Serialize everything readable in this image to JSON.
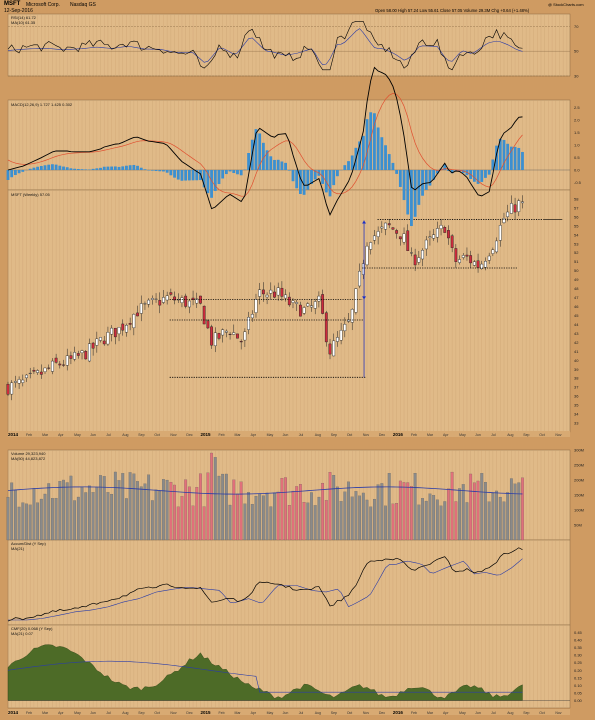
{
  "header": {
    "symbol": "MSFT",
    "company": "Microsoft Corp.",
    "exchange": "Nasdaq GS",
    "date": "12-Sep-2016",
    "quote": "Open 58.00   High 57.24   Low 55.61   Close 57.05   Volume 29.3M   Chg +0.64 (+1.48%)",
    "watermark": "@ StockCharts.com"
  },
  "panels": {
    "rsi_title": "RSI(14) 61.72",
    "rsi_ma": "MA(10) 61.35",
    "macd_title": "MACD(12,26,9) 1.727  1.425  0.302",
    "price_title": "MSFT (Weekly) 57.05",
    "volume_title": "Volume 29,323,940",
    "volume_ma": "MA(50) 44,823,872",
    "accdist_title": "Accum/Dist (Y Sep)",
    "accdist_ma": "MA(21)",
    "cmf_title": "CMF(20) 0.068 (Y Sep)",
    "cmf_ma": "MA(21) 0.07"
  },
  "colors": {
    "background": "#cf9b62",
    "plot_area": "#e0ba88",
    "up_candle": "#ffffff",
    "down_candle": "#cc2b3c",
    "volume_up": "#8a8a8a",
    "volume_down": "#e0707a",
    "macd_line": "#000000",
    "signal_line": "#e05030",
    "histogram": "#3b8fd0",
    "ma_line": "#2a3ca8",
    "cmf_fill": "#4d6b27",
    "annotation_blue": "#1a2fc8"
  },
  "chart_data": {
    "type": "candlestick",
    "interval": "weekly",
    "x_axis": {
      "range": [
        "2014-01",
        "2016-11"
      ],
      "year_labels": [
        "2014",
        "2015",
        "2016"
      ],
      "month_labels": [
        "Feb",
        "Mar",
        "Apr",
        "May",
        "Jun",
        "Jul",
        "Aug",
        "Sep",
        "Oct",
        "Nov",
        "Dec",
        "Feb",
        "Mar",
        "Apr",
        "May",
        "Jun",
        "Jul",
        "Aug",
        "Sep",
        "Oct",
        "Nov",
        "Dec",
        "Feb",
        "Mar",
        "Apr",
        "May",
        "Jun",
        "Jul",
        "Aug",
        "Sep",
        "Oct",
        "Nov"
      ]
    },
    "price": {
      "ylim": [
        32,
        59
      ],
      "ticks": [
        33,
        34,
        35,
        36,
        37,
        38,
        39,
        40,
        41,
        42,
        43,
        44,
        45,
        46,
        47,
        48,
        49,
        50,
        51,
        52,
        53,
        54,
        55,
        56,
        57,
        58
      ],
      "close_path": [
        [
          2014.0,
          37.0
        ],
        [
          2014.08,
          37.5
        ],
        [
          2014.17,
          38.5
        ],
        [
          2014.25,
          39.5
        ],
        [
          2014.33,
          40.0
        ],
        [
          2014.42,
          41.0
        ],
        [
          2014.5,
          42.5
        ],
        [
          2014.58,
          43.5
        ],
        [
          2014.67,
          45.5
        ],
        [
          2014.75,
          46.3
        ],
        [
          2014.83,
          47.0
        ],
        [
          2014.92,
          46.5
        ],
        [
          2015.0,
          46.0
        ],
        [
          2015.06,
          42.0
        ],
        [
          2015.15,
          43.5
        ],
        [
          2015.22,
          42.0
        ],
        [
          2015.3,
          47.5
        ],
        [
          2015.4,
          47.5
        ],
        [
          2015.48,
          46.0
        ],
        [
          2015.55,
          45.5
        ],
        [
          2015.62,
          46.5
        ],
        [
          2015.67,
          41.0
        ],
        [
          2015.72,
          42.5
        ],
        [
          2015.78,
          44.5
        ],
        [
          2015.82,
          48.5
        ],
        [
          2015.87,
          53.8
        ],
        [
          2015.92,
          54.0
        ],
        [
          2015.97,
          55.0
        ],
        [
          2016.05,
          54.0
        ],
        [
          2016.1,
          51.0
        ],
        [
          2016.18,
          53.0
        ],
        [
          2016.27,
          55.0
        ],
        [
          2016.32,
          51.0
        ],
        [
          2016.38,
          51.5
        ],
        [
          2016.45,
          50.5
        ],
        [
          2016.52,
          53.0
        ],
        [
          2016.58,
          56.0
        ],
        [
          2016.65,
          57.5
        ],
        [
          2016.69,
          57.05
        ]
      ],
      "resistance_levels": [
        {
          "value": 46.8,
          "from": 2014.84,
          "to": 2015.84
        },
        {
          "value": 44.5,
          "from": 2014.84,
          "to": 2015.85
        },
        {
          "value": 55.7,
          "from": 2015.92,
          "to": 2016.78
        },
        {
          "value": 50.3,
          "from": 2015.84,
          "to": 2016.65
        }
      ],
      "measured_move": {
        "x": 2015.85,
        "from": 44.5,
        "to": 55.6
      }
    },
    "rsi": {
      "ylim": [
        30,
        80
      ],
      "ticks": [
        30,
        50,
        70
      ],
      "last": 61.72
    },
    "macd": {
      "ylim": [
        -0.8,
        2.8
      ],
      "ticks": [
        -0.5,
        0.0,
        0.5,
        1.0,
        1.5,
        2.0,
        2.5
      ],
      "macd": 1.727,
      "signal": 1.425,
      "histogram": 0.302
    },
    "volume": {
      "ylim": [
        0,
        300
      ],
      "ticks": [
        "50M",
        "100M",
        "150M",
        "200M",
        "250M",
        "300M"
      ],
      "last": 29323940,
      "ma50": 44823872
    },
    "cmf": {
      "ylim": [
        -0.05,
        0.5
      ],
      "ticks": [
        0.0,
        0.05,
        0.1,
        0.15,
        0.2,
        0.25,
        0.3,
        0.35,
        0.4,
        0.45
      ],
      "last": 0.068
    }
  }
}
